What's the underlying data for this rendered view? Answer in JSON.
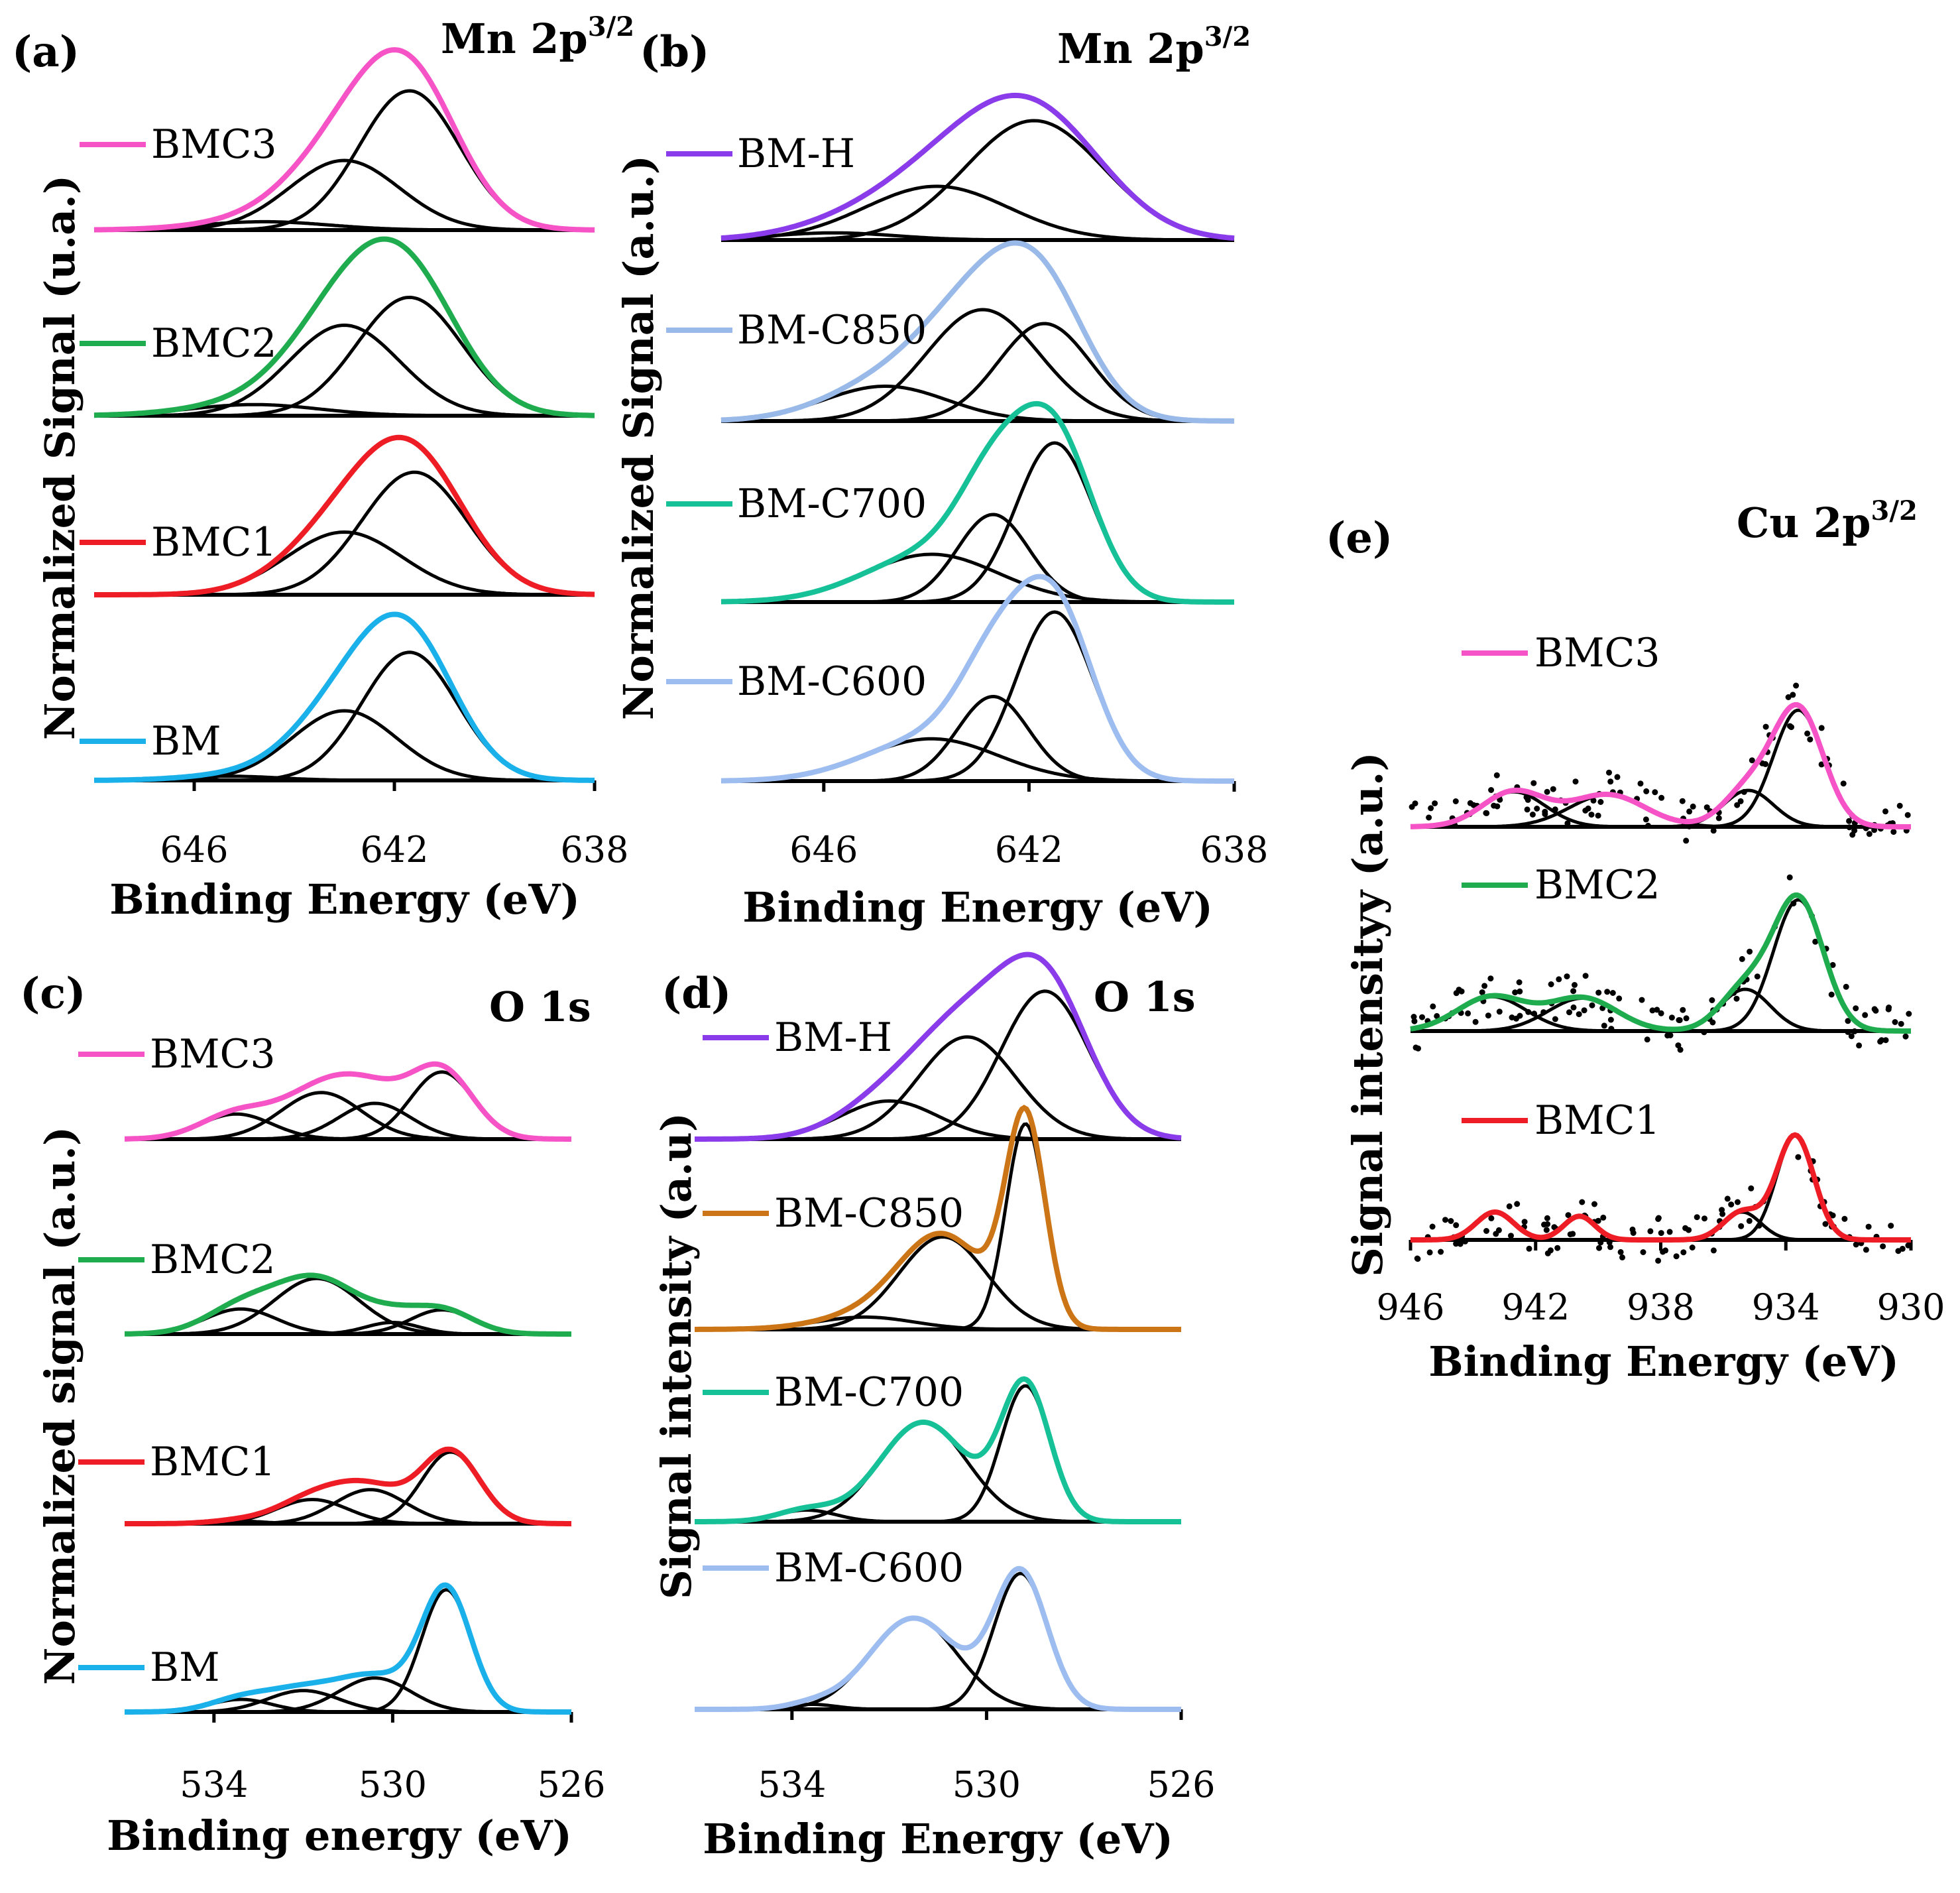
{
  "colors": {
    "BM": "#1ab0ea",
    "BMC1": "#ee1c24",
    "BMC2": "#1fac4f",
    "BMC3": "#f553c6",
    "BM-H": "#8a3cea",
    "BM-C850-b": "#99b9e8",
    "BM-C850-d": "#cc7516",
    "BM-C700": "#16c198",
    "BM-C600": "#9dbdf0",
    "component": "#000000",
    "dot": "#000000"
  },
  "chart_data": [
    {
      "id": "a",
      "type": "line",
      "panel_label": "(a)",
      "title_main": "Mn 2p",
      "title_sup": "3/2",
      "xlabel": "Binding Energy (eV)",
      "ylabel": "Normalized Signal (u.a.)",
      "xlim": [
        648,
        638
      ],
      "xticks": [
        646,
        642,
        638
      ],
      "series": [
        {
          "name": "BMC3",
          "color_key": "BMC3",
          "peaks": [
            [
              641.7,
              1.0,
              1.0
            ],
            [
              643.0,
              0.5,
              1.1
            ],
            [
              644.6,
              0.06,
              1.3
            ]
          ]
        },
        {
          "name": "BMC2",
          "color_key": "BMC2",
          "peaks": [
            [
              641.7,
              0.85,
              1.05
            ],
            [
              643.0,
              0.65,
              1.1
            ],
            [
              644.8,
              0.08,
              1.3
            ]
          ]
        },
        {
          "name": "BMC1",
          "color_key": "BMC1",
          "peaks": [
            [
              641.6,
              0.88,
              1.05
            ],
            [
              643.0,
              0.45,
              1.15
            ]
          ]
        },
        {
          "name": "BM",
          "color_key": "BM",
          "peaks": [
            [
              641.7,
              0.92,
              0.95
            ],
            [
              643.0,
              0.5,
              1.05
            ],
            [
              645.3,
              0.03,
              1.0
            ]
          ]
        }
      ]
    },
    {
      "id": "b",
      "type": "line",
      "panel_label": "(b)",
      "title_main": "Mn 2p",
      "title_sup": "3/2",
      "xlabel": "Binding Energy (eV)",
      "ylabel": "Normalized Signal (a.u.)",
      "xlim": [
        648,
        638
      ],
      "xticks": [
        646,
        642,
        638
      ],
      "series": [
        {
          "name": "BM-H",
          "color_key": "BM-H",
          "peaks": [
            [
              641.9,
              1.0,
              1.35
            ],
            [
              643.8,
              0.45,
              1.4
            ],
            [
              645.8,
              0.06,
              1.2
            ]
          ]
        },
        {
          "name": "BM-C850",
          "color_key": "BM-C850-b",
          "peaks": [
            [
              641.7,
              0.7,
              0.9
            ],
            [
              642.9,
              0.8,
              1.1
            ],
            [
              644.8,
              0.25,
              1.2
            ]
          ]
        },
        {
          "name": "BM-C700",
          "color_key": "BM-C700",
          "peaks": [
            [
              641.5,
              1.0,
              0.75
            ],
            [
              642.7,
              0.55,
              0.7
            ],
            [
              643.9,
              0.3,
              1.3
            ]
          ]
        },
        {
          "name": "BM-C600",
          "color_key": "BM-C600",
          "peaks": [
            [
              641.5,
              1.0,
              0.75
            ],
            [
              642.7,
              0.5,
              0.7
            ],
            [
              643.9,
              0.25,
              1.3
            ]
          ]
        }
      ]
    },
    {
      "id": "c",
      "type": "line",
      "panel_label": "(c)",
      "title_main": "O 1s",
      "title_sup": "",
      "xlabel": "Binding energy (eV)",
      "ylabel": "Normalized signal (a.u.)",
      "xlim": [
        536,
        526
      ],
      "xticks": [
        534,
        530,
        526
      ],
      "series": [
        {
          "name": "BMC3",
          "color_key": "BMC3",
          "peaks": [
            [
              528.9,
              0.75,
              0.7
            ],
            [
              530.4,
              0.4,
              0.8
            ],
            [
              531.6,
              0.52,
              0.9
            ],
            [
              533.5,
              0.28,
              0.8
            ]
          ]
        },
        {
          "name": "BMC2",
          "color_key": "BMC2",
          "peaks": [
            [
              528.9,
              0.27,
              0.7
            ],
            [
              530.0,
              0.13,
              0.6
            ],
            [
              531.7,
              0.62,
              0.95
            ],
            [
              533.4,
              0.28,
              0.8
            ]
          ]
        },
        {
          "name": "BMC1",
          "color_key": "BMC1",
          "peaks": [
            [
              528.7,
              0.8,
              0.65
            ],
            [
              530.5,
              0.38,
              0.8
            ],
            [
              531.8,
              0.27,
              0.8
            ],
            [
              533.5,
              0.03,
              0.6
            ]
          ]
        },
        {
          "name": "BM",
          "color_key": "BM",
          "peaks": [
            [
              528.8,
              0.97,
              0.55
            ],
            [
              530.4,
              0.27,
              0.8
            ],
            [
              532.0,
              0.17,
              0.8
            ],
            [
              533.4,
              0.1,
              0.7
            ]
          ]
        }
      ]
    },
    {
      "id": "d",
      "type": "line",
      "panel_label": "(d)",
      "title_main": "O 1s",
      "title_sup": "",
      "xlabel": "Binding Energy (eV)",
      "ylabel": "Signal intensity (a.u)",
      "xlim": [
        536,
        526
      ],
      "xticks": [
        534,
        530,
        526
      ],
      "series": [
        {
          "name": "BM-H",
          "color_key": "BM-H",
          "peaks": [
            [
              528.8,
              0.97,
              0.9
            ],
            [
              530.4,
              0.67,
              1.0
            ],
            [
              532.0,
              0.25,
              1.0
            ]
          ]
        },
        {
          "name": "BM-C850",
          "color_key": "BM-C850-d",
          "peaks": [
            [
              529.2,
              1.0,
              0.4
            ],
            [
              530.9,
              0.45,
              0.9
            ],
            [
              532.5,
              0.06,
              1.0
            ]
          ]
        },
        {
          "name": "BM-C700",
          "color_key": "BM-C700",
          "peaks": [
            [
              529.2,
              0.82,
              0.5
            ],
            [
              531.3,
              0.6,
              0.9
            ],
            [
              533.7,
              0.07,
              0.6
            ]
          ]
        },
        {
          "name": "BM-C600",
          "color_key": "BM-C600",
          "peaks": [
            [
              529.3,
              0.82,
              0.55
            ],
            [
              531.5,
              0.55,
              0.9
            ],
            [
              533.6,
              0.03,
              0.5
            ]
          ]
        }
      ]
    },
    {
      "id": "e",
      "type": "scatter",
      "panel_label": "(e)",
      "title_main": "Cu 2p",
      "title_sup": "3/2",
      "xlabel": "Binding Energy (eV)",
      "ylabel": "Signal intensityy (a.u.)",
      "xlim": [
        946,
        930
      ],
      "xticks": [
        946,
        942,
        938,
        934,
        930
      ],
      "series": [
        {
          "name": "BMC3",
          "color_key": "BMC3",
          "peaks": [
            [
              933.6,
              0.8,
              0.8
            ],
            [
              935.2,
              0.25,
              0.8
            ],
            [
              942.7,
              0.24,
              1.0
            ],
            [
              939.7,
              0.22,
              1.2
            ]
          ]
        },
        {
          "name": "BMC2",
          "color_key": "BMC2",
          "peaks": [
            [
              933.6,
              0.88,
              0.8
            ],
            [
              935.3,
              0.28,
              0.8
            ],
            [
              943.4,
              0.23,
              1.1
            ],
            [
              940.5,
              0.22,
              1.1
            ]
          ]
        },
        {
          "name": "BMC1",
          "color_key": "BMC1",
          "peaks": [
            [
              933.7,
              0.75,
              0.6
            ],
            [
              935.4,
              0.2,
              0.6
            ],
            [
              943.3,
              0.2,
              0.6
            ],
            [
              940.6,
              0.17,
              0.5
            ]
          ]
        }
      ]
    }
  ]
}
